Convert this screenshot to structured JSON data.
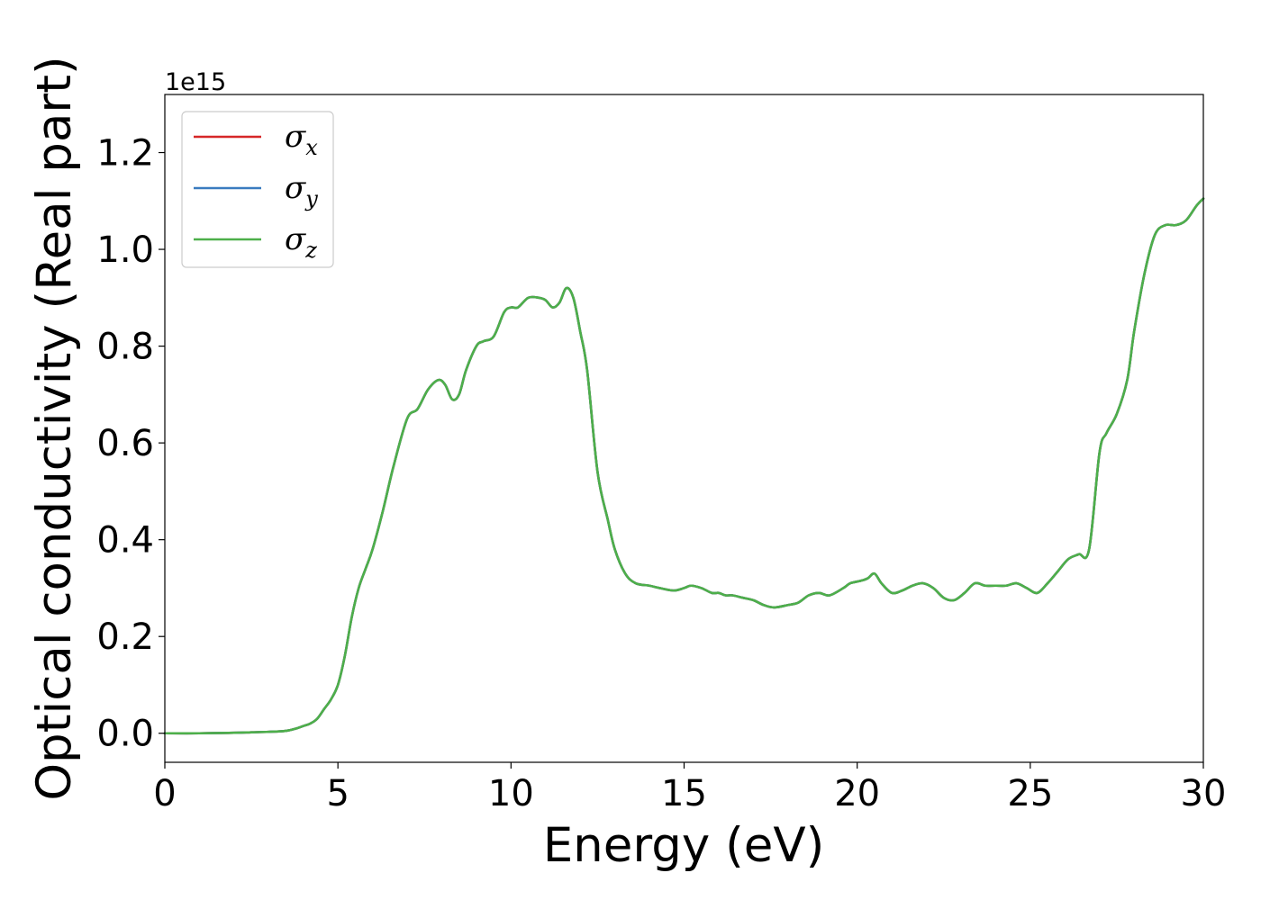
{
  "chart_data": {
    "type": "line",
    "xlabel": "Energy (eV)",
    "ylabel": "Optical conductivity (Real part)",
    "y_offset_label": "1e15",
    "xlim": [
      0,
      30
    ],
    "ylim": [
      -0.06,
      1.32
    ],
    "x_ticks": [
      0,
      5,
      10,
      15,
      20,
      25,
      30
    ],
    "x_tick_labels": [
      "0",
      "5",
      "10",
      "15",
      "20",
      "25",
      "30"
    ],
    "y_ticks": [
      0.0,
      0.2,
      0.4,
      0.6,
      0.8,
      1.0,
      1.2
    ],
    "y_tick_labels": [
      "0.0",
      "0.2",
      "0.4",
      "0.6",
      "0.8",
      "1.0",
      "1.2"
    ],
    "grid": false,
    "legend_position": "top-left",
    "legend": [
      {
        "symbol": "σ",
        "subscript": "x",
        "color": "#d62728"
      },
      {
        "symbol": "σ",
        "subscript": "y",
        "color": "#3a7bbf"
      },
      {
        "symbol": "σ",
        "subscript": "z",
        "color": "#4daf4a"
      }
    ],
    "x": [
      0,
      1,
      2,
      2.5,
      3,
      3.5,
      3.8,
      4.0,
      4.2,
      4.4,
      4.6,
      4.8,
      5.0,
      5.2,
      5.4,
      5.6,
      5.8,
      6.0,
      6.3,
      6.6,
      7.0,
      7.3,
      7.6,
      7.9,
      8.1,
      8.3,
      8.5,
      8.7,
      9.0,
      9.2,
      9.5,
      9.8,
      10.0,
      10.2,
      10.5,
      10.8,
      11.0,
      11.2,
      11.4,
      11.6,
      11.8,
      12.0,
      12.2,
      12.5,
      12.8,
      13.0,
      13.3,
      13.6,
      14.0,
      14.3,
      14.7,
      15.0,
      15.2,
      15.5,
      15.8,
      16.0,
      16.2,
      16.4,
      16.7,
      17.0,
      17.3,
      17.6,
      18.0,
      18.3,
      18.6,
      18.9,
      19.2,
      19.6,
      19.8,
      20.1,
      20.3,
      20.5,
      20.7,
      21.0,
      21.3,
      21.6,
      21.9,
      22.2,
      22.5,
      22.8,
      23.1,
      23.4,
      23.7,
      24.0,
      24.3,
      24.6,
      24.9,
      25.2,
      25.5,
      25.8,
      26.1,
      26.4,
      26.7,
      27.0,
      27.2,
      27.5,
      27.8,
      28.0,
      28.3,
      28.6,
      28.9,
      29.2,
      29.5,
      29.8,
      30.0
    ],
    "series": [
      {
        "color": "#d62728",
        "values": [
          0,
          0,
          0.001,
          0.002,
          0.003,
          0.005,
          0.01,
          0.015,
          0.02,
          0.03,
          0.05,
          0.07,
          0.1,
          0.16,
          0.24,
          0.3,
          0.34,
          0.38,
          0.46,
          0.55,
          0.65,
          0.67,
          0.71,
          0.73,
          0.72,
          0.69,
          0.7,
          0.75,
          0.8,
          0.81,
          0.82,
          0.87,
          0.88,
          0.88,
          0.9,
          0.9,
          0.895,
          0.88,
          0.89,
          0.92,
          0.9,
          0.83,
          0.75,
          0.54,
          0.44,
          0.38,
          0.33,
          0.31,
          0.305,
          0.3,
          0.295,
          0.3,
          0.305,
          0.3,
          0.29,
          0.29,
          0.285,
          0.285,
          0.28,
          0.275,
          0.265,
          0.26,
          0.265,
          0.27,
          0.285,
          0.29,
          0.285,
          0.3,
          0.31,
          0.315,
          0.32,
          0.33,
          0.31,
          0.29,
          0.295,
          0.305,
          0.31,
          0.3,
          0.28,
          0.275,
          0.29,
          0.31,
          0.305,
          0.305,
          0.305,
          0.31,
          0.3,
          0.29,
          0.31,
          0.335,
          0.36,
          0.37,
          0.38,
          0.58,
          0.62,
          0.66,
          0.73,
          0.83,
          0.95,
          1.03,
          1.05,
          1.05,
          1.06,
          1.09,
          1.105
        ]
      },
      {
        "color": "#3a7bbf",
        "values": [
          0,
          0,
          0.001,
          0.002,
          0.003,
          0.005,
          0.01,
          0.015,
          0.02,
          0.03,
          0.05,
          0.07,
          0.1,
          0.16,
          0.24,
          0.3,
          0.34,
          0.38,
          0.46,
          0.55,
          0.65,
          0.67,
          0.71,
          0.73,
          0.72,
          0.69,
          0.7,
          0.75,
          0.8,
          0.81,
          0.82,
          0.87,
          0.88,
          0.88,
          0.9,
          0.9,
          0.895,
          0.88,
          0.89,
          0.92,
          0.9,
          0.83,
          0.75,
          0.54,
          0.44,
          0.38,
          0.33,
          0.31,
          0.305,
          0.3,
          0.295,
          0.3,
          0.305,
          0.3,
          0.29,
          0.29,
          0.285,
          0.285,
          0.28,
          0.275,
          0.265,
          0.26,
          0.265,
          0.27,
          0.285,
          0.29,
          0.285,
          0.3,
          0.31,
          0.315,
          0.32,
          0.33,
          0.31,
          0.29,
          0.295,
          0.305,
          0.31,
          0.3,
          0.28,
          0.275,
          0.29,
          0.31,
          0.305,
          0.305,
          0.305,
          0.31,
          0.3,
          0.29,
          0.31,
          0.335,
          0.36,
          0.37,
          0.38,
          0.58,
          0.62,
          0.66,
          0.73,
          0.83,
          0.95,
          1.03,
          1.05,
          1.05,
          1.06,
          1.09,
          1.105
        ]
      },
      {
        "color": "#4daf4a",
        "values": [
          0,
          0,
          0.001,
          0.002,
          0.003,
          0.005,
          0.01,
          0.015,
          0.02,
          0.03,
          0.05,
          0.07,
          0.1,
          0.16,
          0.24,
          0.3,
          0.34,
          0.38,
          0.46,
          0.55,
          0.65,
          0.67,
          0.71,
          0.73,
          0.72,
          0.69,
          0.7,
          0.75,
          0.8,
          0.81,
          0.82,
          0.87,
          0.88,
          0.88,
          0.9,
          0.9,
          0.895,
          0.88,
          0.89,
          0.92,
          0.9,
          0.83,
          0.75,
          0.54,
          0.44,
          0.38,
          0.33,
          0.31,
          0.305,
          0.3,
          0.295,
          0.3,
          0.305,
          0.3,
          0.29,
          0.29,
          0.285,
          0.285,
          0.28,
          0.275,
          0.265,
          0.26,
          0.265,
          0.27,
          0.285,
          0.29,
          0.285,
          0.3,
          0.31,
          0.315,
          0.32,
          0.33,
          0.31,
          0.29,
          0.295,
          0.305,
          0.31,
          0.3,
          0.28,
          0.275,
          0.29,
          0.31,
          0.305,
          0.305,
          0.305,
          0.31,
          0.3,
          0.29,
          0.31,
          0.335,
          0.36,
          0.37,
          0.38,
          0.58,
          0.62,
          0.66,
          0.73,
          0.83,
          0.95,
          1.03,
          1.05,
          1.05,
          1.06,
          1.09,
          1.105
        ]
      }
    ]
  }
}
